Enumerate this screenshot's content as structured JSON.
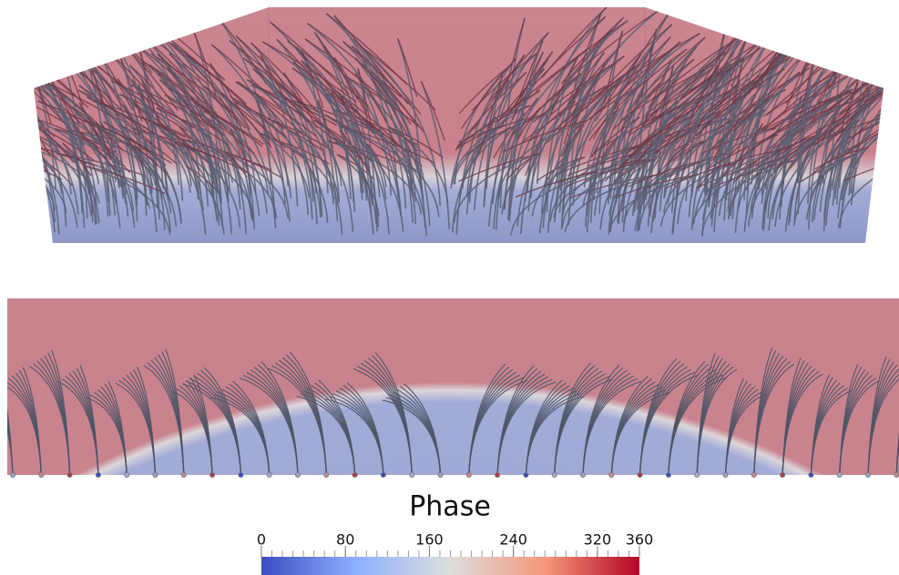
{
  "colorbar": {
    "title": "Phase",
    "range": [
      0,
      360
    ],
    "ticks": [
      0,
      80,
      160,
      240,
      320,
      360
    ]
  }
}
